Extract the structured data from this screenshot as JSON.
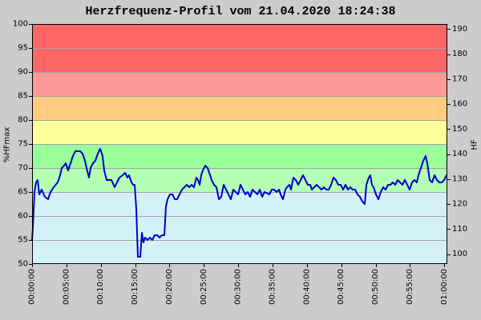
{
  "chart_data": {
    "type": "line",
    "title": "Herzfrequenz-Profil vom 21.04.2020 18:24:38",
    "ylabel": "%HFmax",
    "y2label": "HF",
    "xlim": [
      "00:00:00",
      "01:00:26"
    ],
    "ylim": [
      50,
      100
    ],
    "y2lim": [
      96,
      192
    ],
    "xticks": [
      "00:00:00",
      "00:05:00",
      "00:10:00",
      "00:15:00",
      "00:20:00",
      "00:25:00",
      "00:30:00",
      "00:35:00",
      "00:40:00",
      "00:45:00",
      "00:50:00",
      "00:55:00",
      "01:00:00"
    ],
    "yticks": [
      50,
      55,
      60,
      65,
      70,
      75,
      80,
      85,
      90,
      95,
      100
    ],
    "y2ticks": [
      100,
      110,
      120,
      130,
      140,
      150,
      160,
      170,
      180,
      190
    ],
    "grid_y": true,
    "grid_color": "#a0a0a0",
    "background_color": "#cccccc",
    "bands": [
      {
        "from": 50,
        "to": 65,
        "color": "#d4f1f9"
      },
      {
        "from": 65,
        "to": 70,
        "color": "#b4ffb4"
      },
      {
        "from": 70,
        "to": 75,
        "color": "#99ff99"
      },
      {
        "from": 75,
        "to": 80,
        "color": "#ffff99"
      },
      {
        "from": 80,
        "to": 85,
        "color": "#ffcc80"
      },
      {
        "from": 85,
        "to": 90,
        "color": "#ff9999"
      },
      {
        "from": 90,
        "to": 100,
        "color": "#ff6666"
      }
    ],
    "x": [
      "00:00:00",
      "00:00:07",
      "00:00:21",
      "00:00:35",
      "00:00:49",
      "00:01:03",
      "00:01:24",
      "00:01:52",
      "00:02:20",
      "00:02:41",
      "00:03:09",
      "00:03:44",
      "00:04:05",
      "00:04:19",
      "00:04:40",
      "00:04:54",
      "00:05:15",
      "00:05:36",
      "00:05:57",
      "00:06:18",
      "00:06:39",
      "00:07:00",
      "00:07:21",
      "00:07:42",
      "00:07:56",
      "00:08:17",
      "00:08:31",
      "00:08:52",
      "00:09:13",
      "00:09:34",
      "00:09:55",
      "00:10:16",
      "00:10:30",
      "00:10:51",
      "00:11:12",
      "00:11:33",
      "00:12:01",
      "00:12:22",
      "00:12:43",
      "00:13:11",
      "00:13:32",
      "00:13:53",
      "00:14:07",
      "00:14:28",
      "00:14:42",
      "00:14:56",
      "00:15:10",
      "00:15:24",
      "00:15:45",
      "00:15:59",
      "00:16:13",
      "00:16:27",
      "00:16:48",
      "00:17:09",
      "00:17:30",
      "00:17:51",
      "00:18:12",
      "00:18:33",
      "00:18:54",
      "00:19:15",
      "00:19:29",
      "00:19:43",
      "00:20:04",
      "00:20:25",
      "00:20:46",
      "00:21:07",
      "00:21:28",
      "00:21:49",
      "00:22:10",
      "00:22:31",
      "00:22:52",
      "00:23:13",
      "00:23:34",
      "00:23:55",
      "00:24:09",
      "00:24:23",
      "00:24:37",
      "00:24:51",
      "00:25:12",
      "00:25:33",
      "00:25:47",
      "00:26:08",
      "00:26:29",
      "00:26:50",
      "00:27:11",
      "00:27:32",
      "00:27:53",
      "00:28:14",
      "00:28:35",
      "00:28:56",
      "00:29:17",
      "00:29:38",
      "00:29:59",
      "00:30:20",
      "00:30:41",
      "00:31:02",
      "00:31:23",
      "00:31:44",
      "00:32:05",
      "00:32:26",
      "00:32:47",
      "00:33:08",
      "00:33:29",
      "00:33:50",
      "00:34:32",
      "00:34:53",
      "00:35:14",
      "00:35:35",
      "00:35:56",
      "00:36:10",
      "00:36:31",
      "00:36:52",
      "00:37:06",
      "00:37:27",
      "00:37:41",
      "00:38:02",
      "00:38:23",
      "00:38:44",
      "00:39:05",
      "00:39:26",
      "00:39:47",
      "00:40:08",
      "00:40:29",
      "00:40:43",
      "00:41:04",
      "00:41:25",
      "00:41:46",
      "00:42:07",
      "00:42:28",
      "00:42:49",
      "00:43:10",
      "00:43:31",
      "00:43:52",
      "00:44:13",
      "00:44:34",
      "00:44:55",
      "00:45:16",
      "00:45:37",
      "00:45:58",
      "00:46:19",
      "00:46:40",
      "00:47:01",
      "00:47:22",
      "00:47:43",
      "00:48:04",
      "00:48:25",
      "00:48:39",
      "00:49:00",
      "00:49:14",
      "00:49:28",
      "00:49:42",
      "00:50:03",
      "00:50:24",
      "00:50:45",
      "00:51:06",
      "00:51:27",
      "00:51:48",
      "00:52:09",
      "00:52:30",
      "00:52:51",
      "00:53:12",
      "00:53:33",
      "00:53:54",
      "00:54:15",
      "00:54:36",
      "00:54:57",
      "00:55:18",
      "00:55:39",
      "00:56:00",
      "00:56:14",
      "00:56:35",
      "00:56:56",
      "00:57:17",
      "00:57:31",
      "00:57:52",
      "00:58:13",
      "00:58:34",
      "00:58:55",
      "00:59:16",
      "00:59:37",
      "00:59:58",
      "01:00:19"
    ],
    "series": [
      {
        "color": "#0000cc",
        "values": [
          55,
          57.5,
          65,
          67,
          67.5,
          64.5,
          65.5,
          64,
          63.5,
          65,
          66,
          67,
          68.5,
          70,
          70.5,
          71,
          69.5,
          71,
          72.5,
          73.5,
          73.5,
          73.5,
          73,
          71.5,
          70,
          68,
          70,
          71,
          71.5,
          73,
          74,
          72.5,
          69.5,
          67.5,
          67.5,
          67.5,
          66,
          67,
          68,
          68.5,
          69,
          68,
          68.5,
          67,
          66.5,
          66.5,
          61.5,
          51.5,
          51.5,
          56.5,
          54.5,
          55.5,
          55,
          55.5,
          55,
          56,
          56,
          55.5,
          56,
          56,
          62,
          63.5,
          64.5,
          64.5,
          63.5,
          63.5,
          64.5,
          65.5,
          66,
          66.5,
          66,
          66.5,
          66,
          68,
          67.5,
          66.5,
          68.5,
          69.5,
          70.5,
          70,
          69,
          67.5,
          66.5,
          66,
          63.5,
          64,
          66.5,
          65.5,
          64.5,
          63.5,
          65.5,
          65,
          64.5,
          66.5,
          65.5,
          64.5,
          65,
          64,
          65.5,
          65,
          64.5,
          65.5,
          64,
          65,
          64.5,
          65.5,
          65.5,
          65,
          65.5,
          64.5,
          63.5,
          65.5,
          66,
          66.5,
          65.5,
          68,
          67.5,
          66.5,
          67.5,
          68.5,
          67.5,
          66.5,
          66.5,
          65.5,
          66,
          66.5,
          66,
          65.5,
          66,
          65.5,
          65.5,
          66.5,
          68,
          67.5,
          66.5,
          66.5,
          65.5,
          66.5,
          65.5,
          66,
          65.5,
          65.5,
          64.5,
          64,
          63,
          62.5,
          66.5,
          68,
          68.5,
          66.5,
          66,
          64.5,
          63.5,
          65,
          66,
          65.5,
          66.5,
          66.5,
          67,
          66.5,
          67.5,
          67,
          66.5,
          67.5,
          66.5,
          65.5,
          67,
          67.5,
          67,
          68.5,
          70,
          71.5,
          72.5,
          71,
          67.5,
          67,
          68.5,
          67.5,
          67,
          67,
          67.5,
          68.5
        ]
      }
    ]
  }
}
